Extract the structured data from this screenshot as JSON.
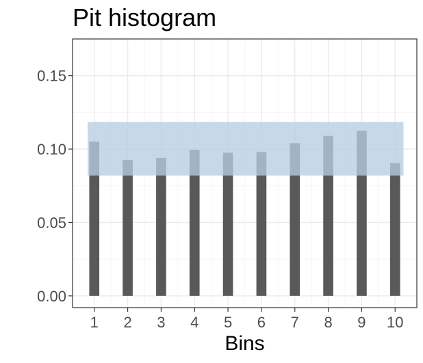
{
  "chart_data": {
    "type": "bar",
    "title": "Pit histogram",
    "xlabel": "Bins",
    "ylabel": "",
    "categories": [
      "1",
      "2",
      "3",
      "4",
      "5",
      "6",
      "7",
      "8",
      "9",
      "10"
    ],
    "values": [
      0.105,
      0.0925,
      0.094,
      0.0995,
      0.0975,
      0.098,
      0.104,
      0.109,
      0.1125,
      0.0905
    ],
    "ylim": [
      -0.008,
      0.175
    ],
    "xlim": [
      0.35,
      10.65
    ],
    "y_ticks": [
      "0.00",
      "0.05",
      "0.10",
      "0.15"
    ],
    "y_tick_values": [
      0,
      0.05,
      0.1,
      0.15
    ],
    "band": {
      "ymin": 0.082,
      "ymax": 0.1185,
      "xmin": 0.8,
      "xmax": 10.25
    },
    "grid": true,
    "colors": {
      "bar": "#595959",
      "band": "#b7cde2",
      "grid_major": "#ebebeb",
      "grid_minor": "#f5f5f5",
      "panel_border": "#333333",
      "tick_label": "#4d4d4d"
    }
  }
}
